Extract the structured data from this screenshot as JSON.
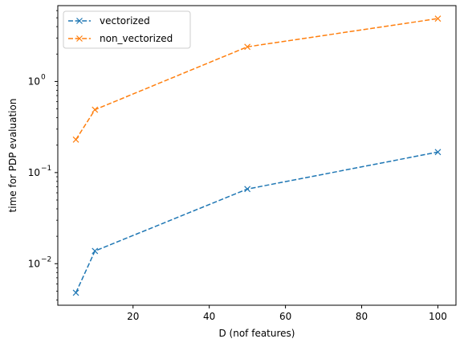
{
  "chart_data": {
    "type": "line",
    "title": "",
    "xlabel": "D (nof features)",
    "ylabel": "time for PDP evaluation",
    "yscale": "log",
    "xlim": [
      0.25,
      104.75
    ],
    "ylim": [
      0.0035,
      6.8
    ],
    "grid": false,
    "legend_position": "top-left",
    "x_ticks": [
      20,
      40,
      60,
      80,
      100
    ],
    "x_tick_labels": [
      "20",
      "40",
      "60",
      "80",
      "100"
    ],
    "y_major_ticks": [
      0.01,
      0.1,
      1
    ],
    "y_tick_labels": [
      "10",
      "10",
      "10"
    ],
    "y_tick_exponents": [
      "−2",
      "−1",
      "0"
    ],
    "series": [
      {
        "name": "vectorized",
        "color": "#1f77b4",
        "marker": "x",
        "linestyle": "dashed",
        "x": [
          5,
          10,
          50,
          100
        ],
        "y": [
          0.0048,
          0.0138,
          0.066,
          0.168
        ]
      },
      {
        "name": "non_vectorized",
        "color": "#ff7f0e",
        "marker": "x",
        "linestyle": "dashed",
        "x": [
          5,
          10,
          50,
          100
        ],
        "y": [
          0.23,
          0.49,
          2.4,
          4.9
        ]
      }
    ]
  }
}
